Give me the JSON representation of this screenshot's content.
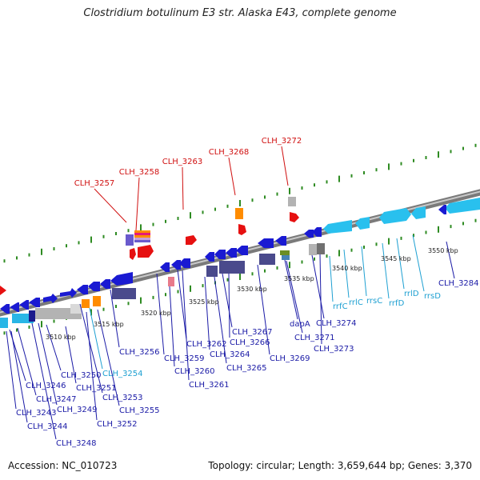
{
  "title": "Clostridium botulinum E3 str. Alaska E43, complete genome",
  "footer": {
    "accession": "Accession: NC_010723",
    "info": "Topology: circular; Length: 3,659,644 bp; Genes: 3,370"
  },
  "colors": {
    "backbone": "#8c8c8c",
    "tick": "#2e8b22",
    "label_cds": "#1a1aa6",
    "label_rna": "#1ea0d2",
    "label_highlight": "#d01010",
    "scale_text": "#222222"
  },
  "scale_labels": [
    "3510 kbp",
    "3515 kbp",
    "3520 kbp",
    "3525 kbp",
    "3530 kbp",
    "3535 kbp",
    "3540 kbp",
    "3545 kbp",
    "3550 kbp"
  ],
  "highlight_labels": [
    "CLH_3257",
    "CLH_3258",
    "CLH_3263",
    "CLH_3268",
    "CLH_3272"
  ],
  "cds_labels": [
    "CLH_3246",
    "CLH_3247",
    "CLH_3243",
    "CLH_3249",
    "CLH_3244",
    "CLH_3248",
    "CLH_3250",
    "CLH_3251",
    "CLH_3253",
    "CLH_3252",
    "CLH_3255",
    "CLH_3256",
    "CLH_3259",
    "CLH_3260",
    "CLH_3262",
    "CLH_3261",
    "CLH_3264",
    "CLH_3267",
    "CLH_3266",
    "CLH_3265",
    "CLH_3269",
    "dapA",
    "CLH_3271",
    "CLH_3274",
    "CLH_3273",
    "CLH_3284"
  ],
  "rna_labels": [
    "CLH_3254",
    "rrfC",
    "rrlC",
    "rrsC",
    "rrfD",
    "rrlD",
    "rrsD"
  ]
}
